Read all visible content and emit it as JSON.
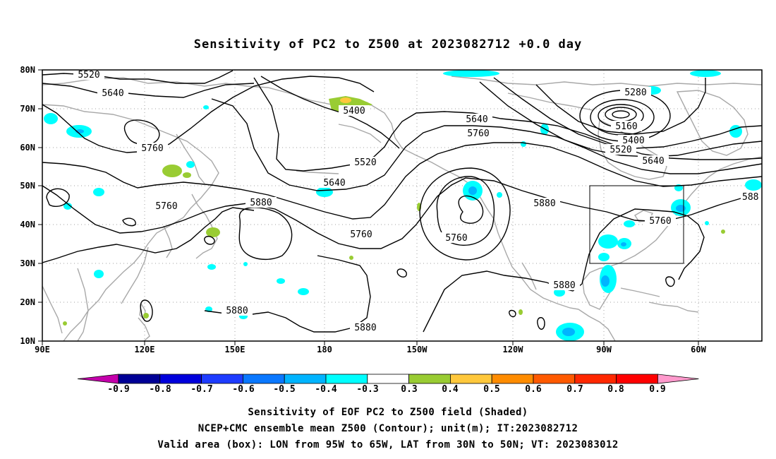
{
  "title": "Sensitivity of PC2 to Z500 at 2023082712 +0.0 day",
  "lon_ticks": [
    "90E",
    "120E",
    "150E",
    "180",
    "150W",
    "120W",
    "90W",
    "60W"
  ],
  "lat_ticks": [
    "80N",
    "70N",
    "60N",
    "50N",
    "40N",
    "30N",
    "20N",
    "10N"
  ],
  "colorbar": {
    "labels": [
      "-0.9",
      "-0.8",
      "-0.7",
      "-0.6",
      "-0.5",
      "-0.4",
      "-0.3",
      "0.3",
      "0.4",
      "0.5",
      "0.6",
      "0.7",
      "0.8",
      "0.9"
    ],
    "colors": [
      "#c400ab",
      "#000096",
      "#0000dc",
      "#1e3cff",
      "#0a78ff",
      "#00b4ff",
      "#00ffff",
      "#ffffff",
      "#99cc33",
      "#ffc83c",
      "#ff8c00",
      "#ff5a00",
      "#ff2800",
      "#ff0000",
      "#ff99cc"
    ]
  },
  "contour_labels": [
    "5520",
    "5640",
    "5760",
    "5400",
    "5520",
    "5640",
    "5760",
    "5880",
    "5880",
    "5640",
    "5760",
    "5760",
    "5880",
    "5880",
    "5880",
    "5760",
    "5640",
    "5520",
    "5400",
    "5280",
    "5160",
    "5760",
    "588"
  ],
  "valid_box": {
    "lon_min": -95,
    "lon_max": -65,
    "lat_min": 30,
    "lat_max": 50
  },
  "captions": [
    "Sensitivity of EOF PC2 to Z500 field (Shaded)",
    "NCEP+CMC ensemble mean Z500 (Contour); unit(m); IT:2023082712",
    "Valid area (box): LON from 95W to 65W, LAT from 30N to 50N; VT: 2023083012"
  ],
  "colors": {
    "contour": "#000000",
    "coast": "#a0a0a0",
    "grid": "#a0a0a0",
    "box": "#000000"
  }
}
